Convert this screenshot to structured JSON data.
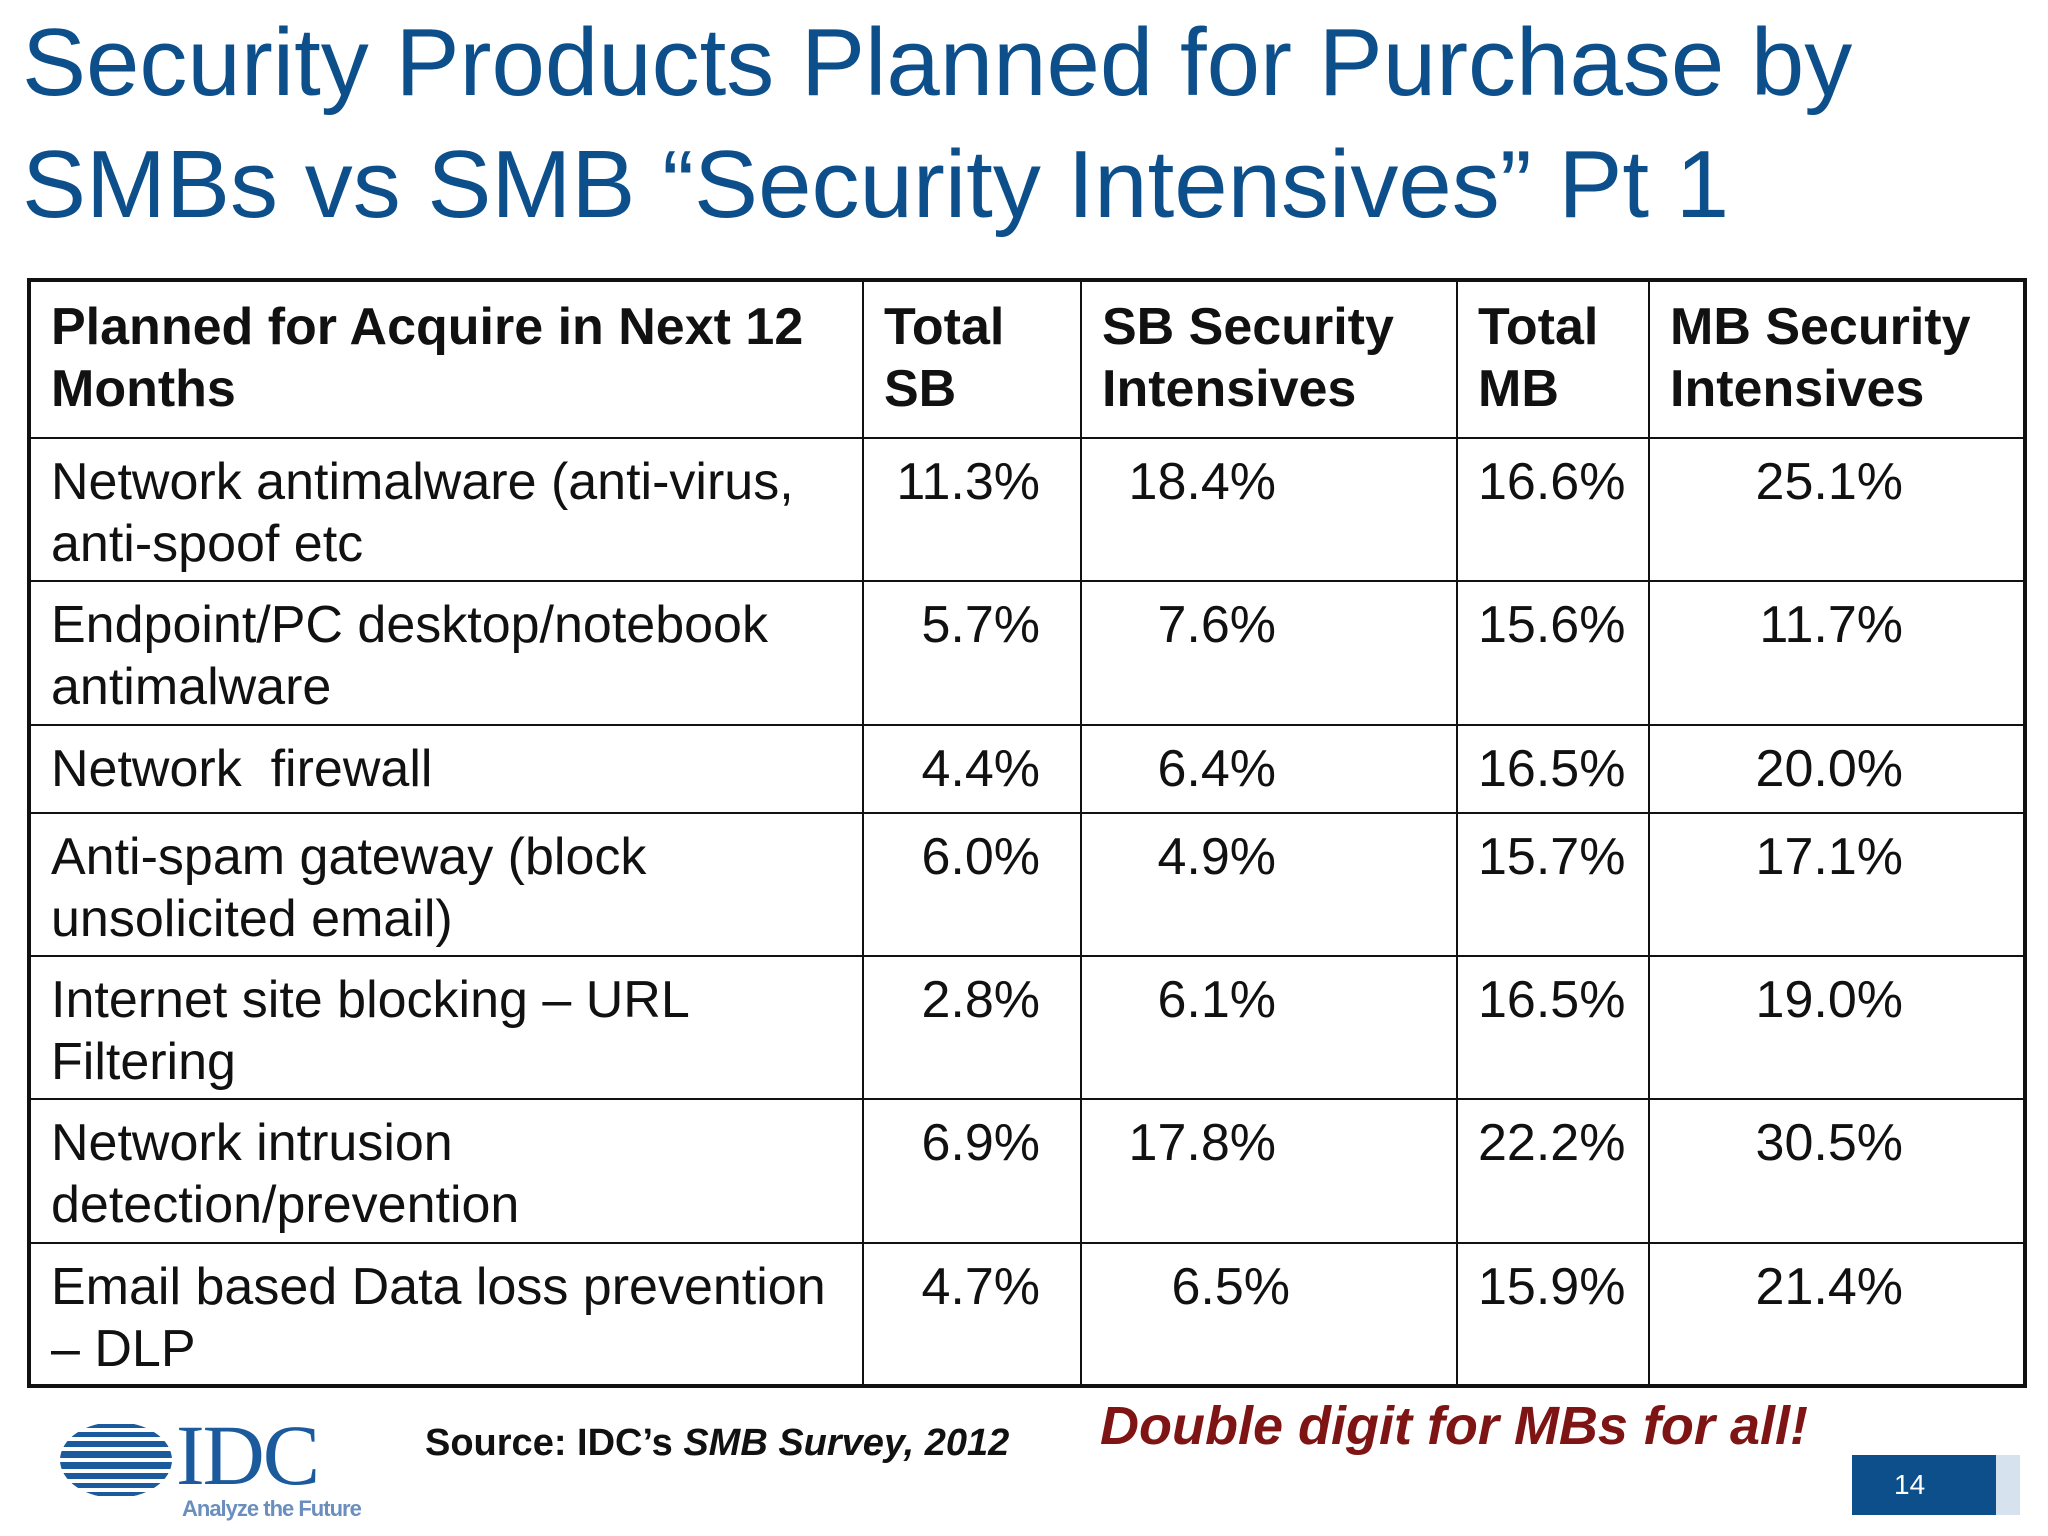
{
  "title": {
    "line1": "Security Products Planned for Purchase by",
    "line2": "SMBs vs SMB “Security Intensives” Pt 1"
  },
  "table": {
    "headers": [
      "Planned for Acquire in Next 12 Months",
      "Total SB",
      "SB Security Intensives",
      "Total MB",
      "MB Security Intensives"
    ],
    "rows": [
      {
        "product": "Network antimalware (anti-virus, anti-spoof etc",
        "total_sb": "11.3%",
        "sb_intensives": "18.4%",
        "total_mb": "16.6%",
        "mb_intensives": "25.1%"
      },
      {
        "product": "Endpoint/PC desktop/notebook antimalware",
        "total_sb": "5.7%",
        "sb_intensives": "7.6%",
        "total_mb": "15.6%",
        "mb_intensives": "11.7%"
      },
      {
        "product": "Network  firewall",
        "total_sb": "4.4%",
        "sb_intensives": "6.4%",
        "total_mb": "16.5%",
        "mb_intensives": "20.0%"
      },
      {
        "product": "Anti-spam gateway (block unsolicited email)",
        "total_sb": "6.0%",
        "sb_intensives": "4.9%",
        "total_mb": "15.7%",
        "mb_intensives": "17.1%"
      },
      {
        "product": "Internet site blocking – URL Filtering",
        "total_sb": "2.8%",
        "sb_intensives": "6.1%",
        "total_mb": "16.5%",
        "mb_intensives": "19.0%"
      },
      {
        "product": "Network intrusion detection/prevention",
        "total_sb": "6.9%",
        "sb_intensives": "17.8%",
        "total_mb": "22.2%",
        "mb_intensives": "30.5%"
      },
      {
        "product": "Email based Data loss prevention – DLP",
        "total_sb": "4.7%",
        "sb_intensives": "6.5%",
        "total_mb": "15.9%",
        "mb_intensives": "21.4%"
      }
    ]
  },
  "footer": {
    "logo_text": "IDC",
    "logo_tagline": "Analyze the Future",
    "source_prefix": "Source: IDC’s ",
    "source_italic": "SMB Survey, 2012",
    "highlight": "Double digit for MBs for all!",
    "page_number": "14"
  },
  "colors": {
    "title": "#0d4f8b",
    "highlight": "#7f1414",
    "page_box": "#0d4f8b"
  }
}
